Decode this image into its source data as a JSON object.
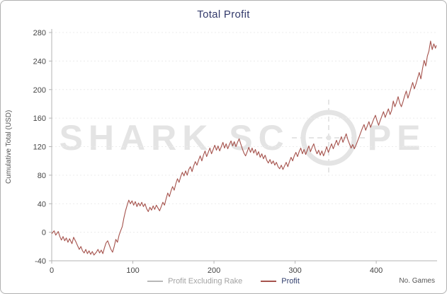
{
  "watermark": {
    "left": "SHARK SC",
    "right": "PE"
  },
  "theme": {
    "title_text": "#333a6b",
    "axis_line": "#b3b3b3",
    "tick_text": "#444444",
    "grid_line": "#ececec",
    "muted_text": "#555555",
    "watermark_color": "#e4e4e4",
    "legend_disabled_text": "#a3a3a3",
    "legend_active_text": "#33406e"
  },
  "chart_data": {
    "type": "line",
    "title": "Total Profit",
    "xlabel": "No. Games",
    "ylabel": "Cumulative Total (USD)",
    "xlim": [
      0,
      475
    ],
    "ylim": [
      -40,
      280
    ],
    "x_ticks": [
      0,
      100,
      200,
      300,
      400
    ],
    "y_ticks": [
      -40,
      0,
      40,
      80,
      120,
      160,
      200,
      240,
      280
    ],
    "grid": "horizontal-dashed",
    "legend_position": "bottom-center",
    "series": [
      {
        "name": "Profit Excluding Rake",
        "color": "#b8b8b8",
        "visible": false,
        "points": []
      },
      {
        "name": "Profit",
        "color": "#a5524c",
        "visible": true,
        "points": [
          [
            0,
            -2
          ],
          [
            3,
            2
          ],
          [
            5,
            -4
          ],
          [
            8,
            1
          ],
          [
            10,
            -6
          ],
          [
            12,
            -11
          ],
          [
            14,
            -6
          ],
          [
            16,
            -12
          ],
          [
            18,
            -8
          ],
          [
            20,
            -14
          ],
          [
            22,
            -9
          ],
          [
            25,
            -16
          ],
          [
            27,
            -7
          ],
          [
            30,
            -14
          ],
          [
            32,
            -19
          ],
          [
            34,
            -24
          ],
          [
            36,
            -20
          ],
          [
            38,
            -26
          ],
          [
            40,
            -29
          ],
          [
            42,
            -24
          ],
          [
            44,
            -30
          ],
          [
            46,
            -26
          ],
          [
            48,
            -31
          ],
          [
            50,
            -27
          ],
          [
            52,
            -32
          ],
          [
            55,
            -28
          ],
          [
            57,
            -24
          ],
          [
            59,
            -29
          ],
          [
            61,
            -25
          ],
          [
            63,
            -30
          ],
          [
            65,
            -22
          ],
          [
            67,
            -15
          ],
          [
            69,
            -12
          ],
          [
            71,
            -18
          ],
          [
            73,
            -24
          ],
          [
            75,
            -28
          ],
          [
            77,
            -20
          ],
          [
            79,
            -10
          ],
          [
            81,
            -14
          ],
          [
            83,
            -4
          ],
          [
            85,
            2
          ],
          [
            87,
            8
          ],
          [
            89,
            20
          ],
          [
            91,
            30
          ],
          [
            93,
            38
          ],
          [
            95,
            45
          ],
          [
            97,
            40
          ],
          [
            99,
            44
          ],
          [
            101,
            38
          ],
          [
            103,
            43
          ],
          [
            105,
            36
          ],
          [
            107,
            41
          ],
          [
            109,
            37
          ],
          [
            111,
            42
          ],
          [
            113,
            36
          ],
          [
            115,
            40
          ],
          [
            117,
            33
          ],
          [
            119,
            29
          ],
          [
            121,
            35
          ],
          [
            123,
            31
          ],
          [
            125,
            37
          ],
          [
            127,
            32
          ],
          [
            129,
            38
          ],
          [
            131,
            34
          ],
          [
            133,
            30
          ],
          [
            135,
            36
          ],
          [
            137,
            42
          ],
          [
            139,
            38
          ],
          [
            141,
            47
          ],
          [
            143,
            55
          ],
          [
            145,
            50
          ],
          [
            147,
            58
          ],
          [
            149,
            64
          ],
          [
            151,
            59
          ],
          [
            153,
            68
          ],
          [
            155,
            75
          ],
          [
            157,
            70
          ],
          [
            159,
            78
          ],
          [
            161,
            84
          ],
          [
            163,
            79
          ],
          [
            165,
            86
          ],
          [
            167,
            80
          ],
          [
            169,
            88
          ],
          [
            171,
            92
          ],
          [
            173,
            85
          ],
          [
            175,
            93
          ],
          [
            177,
            99
          ],
          [
            179,
            94
          ],
          [
            181,
            101
          ],
          [
            183,
            107
          ],
          [
            185,
            100
          ],
          [
            187,
            108
          ],
          [
            189,
            114
          ],
          [
            191,
            106
          ],
          [
            193,
            112
          ],
          [
            195,
            118
          ],
          [
            197,
            110
          ],
          [
            199,
            116
          ],
          [
            201,
            122
          ],
          [
            203,
            115
          ],
          [
            205,
            121
          ],
          [
            207,
            114
          ],
          [
            209,
            120
          ],
          [
            211,
            126
          ],
          [
            213,
            118
          ],
          [
            215,
            124
          ],
          [
            217,
            117
          ],
          [
            219,
            123
          ],
          [
            221,
            128
          ],
          [
            223,
            121
          ],
          [
            225,
            127
          ],
          [
            227,
            120
          ],
          [
            229,
            126
          ],
          [
            231,
            131
          ],
          [
            233,
            124
          ],
          [
            235,
            117
          ],
          [
            237,
            111
          ],
          [
            239,
            107
          ],
          [
            241,
            113
          ],
          [
            243,
            119
          ],
          [
            245,
            112
          ],
          [
            247,
            118
          ],
          [
            249,
            111
          ],
          [
            251,
            116
          ],
          [
            253,
            108
          ],
          [
            255,
            113
          ],
          [
            257,
            105
          ],
          [
            259,
            110
          ],
          [
            261,
            103
          ],
          [
            263,
            108
          ],
          [
            265,
            101
          ],
          [
            267,
            97
          ],
          [
            269,
            102
          ],
          [
            271,
            96
          ],
          [
            273,
            100
          ],
          [
            275,
            94
          ],
          [
            277,
            98
          ],
          [
            279,
            92
          ],
          [
            281,
            89
          ],
          [
            283,
            94
          ],
          [
            285,
            88
          ],
          [
            287,
            93
          ],
          [
            289,
            98
          ],
          [
            291,
            92
          ],
          [
            293,
            99
          ],
          [
            295,
            105
          ],
          [
            297,
            100
          ],
          [
            299,
            107
          ],
          [
            301,
            112
          ],
          [
            303,
            106
          ],
          [
            305,
            113
          ],
          [
            307,
            118
          ],
          [
            309,
            110
          ],
          [
            311,
            116
          ],
          [
            313,
            109
          ],
          [
            315,
            115
          ],
          [
            317,
            121
          ],
          [
            319,
            113
          ],
          [
            321,
            119
          ],
          [
            323,
            124
          ],
          [
            325,
            116
          ],
          [
            327,
            110
          ],
          [
            329,
            115
          ],
          [
            331,
            108
          ],
          [
            333,
            114
          ],
          [
            335,
            107
          ],
          [
            337,
            113
          ],
          [
            339,
            120
          ],
          [
            341,
            112
          ],
          [
            343,
            118
          ],
          [
            345,
            124
          ],
          [
            347,
            117
          ],
          [
            349,
            123
          ],
          [
            351,
            129
          ],
          [
            353,
            122
          ],
          [
            355,
            128
          ],
          [
            357,
            134
          ],
          [
            359,
            126
          ],
          [
            361,
            132
          ],
          [
            363,
            138
          ],
          [
            365,
            130
          ],
          [
            367,
            124
          ],
          [
            369,
            118
          ],
          [
            371,
            123
          ],
          [
            373,
            117
          ],
          [
            375,
            122
          ],
          [
            377,
            128
          ],
          [
            379,
            134
          ],
          [
            381,
            140
          ],
          [
            383,
            146
          ],
          [
            385,
            151
          ],
          [
            387,
            143
          ],
          [
            389,
            149
          ],
          [
            391,
            155
          ],
          [
            393,
            147
          ],
          [
            395,
            153
          ],
          [
            397,
            159
          ],
          [
            399,
            164
          ],
          [
            401,
            156
          ],
          [
            403,
            150
          ],
          [
            405,
            157
          ],
          [
            407,
            163
          ],
          [
            409,
            169
          ],
          [
            411,
            161
          ],
          [
            413,
            167
          ],
          [
            415,
            173
          ],
          [
            417,
            165
          ],
          [
            419,
            171
          ],
          [
            421,
            184
          ],
          [
            423,
            176
          ],
          [
            425,
            182
          ],
          [
            427,
            190
          ],
          [
            429,
            181
          ],
          [
            431,
            176
          ],
          [
            433,
            183
          ],
          [
            435,
            191
          ],
          [
            437,
            198
          ],
          [
            439,
            188
          ],
          [
            441,
            195
          ],
          [
            443,
            203
          ],
          [
            445,
            210
          ],
          [
            447,
            201
          ],
          [
            449,
            208
          ],
          [
            451,
            216
          ],
          [
            453,
            224
          ],
          [
            455,
            215
          ],
          [
            457,
            229
          ],
          [
            459,
            241
          ],
          [
            461,
            233
          ],
          [
            463,
            247
          ],
          [
            465,
            254
          ],
          [
            467,
            268
          ],
          [
            469,
            256
          ],
          [
            471,
            264
          ],
          [
            473,
            258
          ],
          [
            474,
            262
          ]
        ]
      }
    ]
  }
}
